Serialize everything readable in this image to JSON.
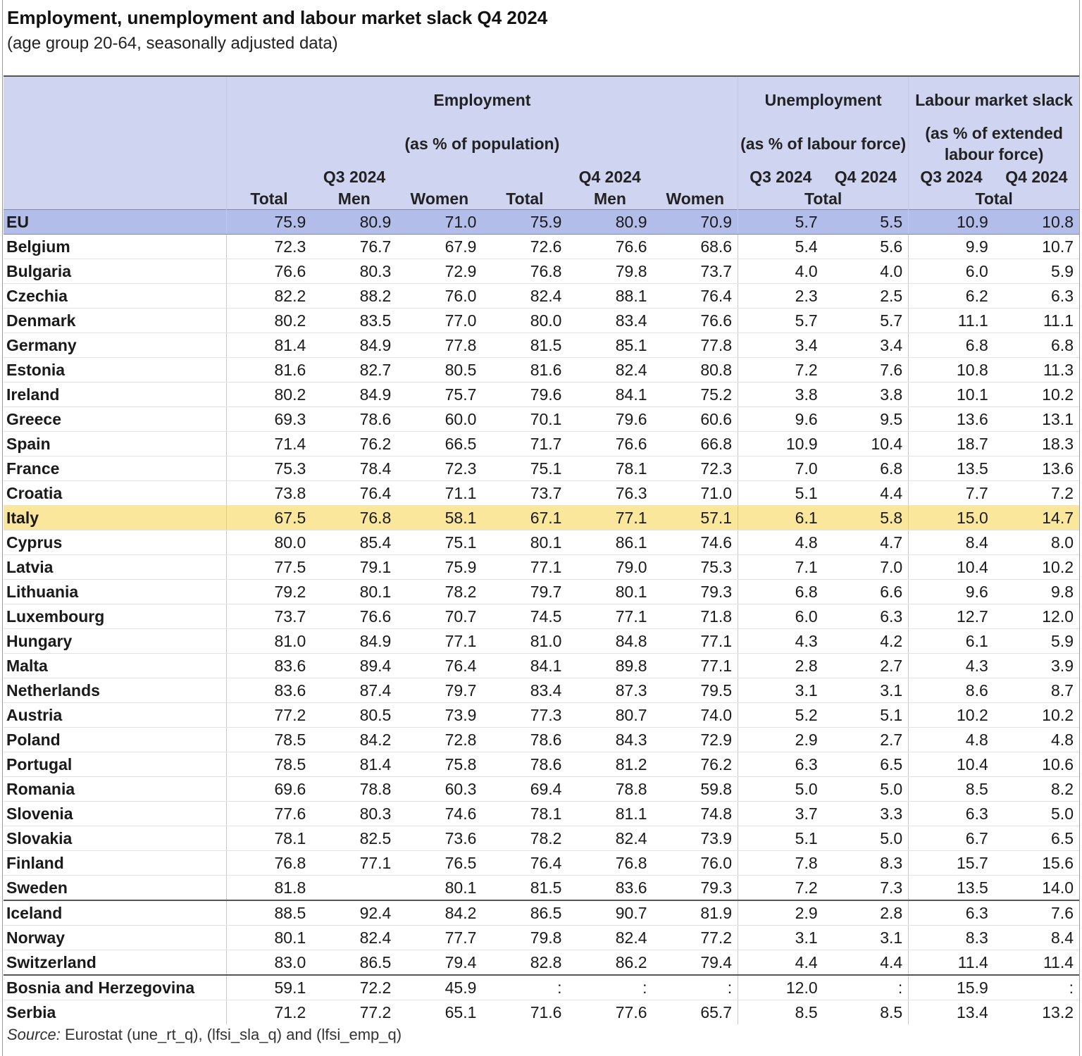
{
  "title": "Employment, unemployment and labour market slack Q4 2024",
  "subtitle": "(age group 20-64, seasonally adjusted data)",
  "header": {
    "employment": "Employment",
    "employment_sub": "(as % of population)",
    "unemployment": "Unemployment",
    "unemployment_sub": "(as % of labour force)",
    "slack": "Labour market slack",
    "slack_sub": "(as % of extended labour force)",
    "q3": "Q3 2024",
    "q4": "Q4 2024",
    "total": "Total",
    "men": "Men",
    "women": "Women"
  },
  "rows": [
    {
      "country": "EU",
      "values": [
        "75.9",
        "80.9",
        "71.0",
        "75.9",
        "80.9",
        "70.9",
        "5.7",
        "5.5",
        "10.9",
        "10.8"
      ]
    },
    {
      "country": "Belgium",
      "values": [
        "72.3",
        "76.7",
        "67.9",
        "72.6",
        "76.6",
        "68.6",
        "5.4",
        "5.6",
        "9.9",
        "10.7"
      ]
    },
    {
      "country": "Bulgaria",
      "values": [
        "76.6",
        "80.3",
        "72.9",
        "76.8",
        "79.8",
        "73.7",
        "4.0",
        "4.0",
        "6.0",
        "5.9"
      ]
    },
    {
      "country": "Czechia",
      "values": [
        "82.2",
        "88.2",
        "76.0",
        "82.4",
        "88.1",
        "76.4",
        "2.3",
        "2.5",
        "6.2",
        "6.3"
      ]
    },
    {
      "country": "Denmark",
      "values": [
        "80.2",
        "83.5",
        "77.0",
        "80.0",
        "83.4",
        "76.6",
        "5.7",
        "5.7",
        "11.1",
        "11.1"
      ]
    },
    {
      "country": "Germany",
      "values": [
        "81.4",
        "84.9",
        "77.8",
        "81.5",
        "85.1",
        "77.8",
        "3.4",
        "3.4",
        "6.8",
        "6.8"
      ]
    },
    {
      "country": "Estonia",
      "values": [
        "81.6",
        "82.7",
        "80.5",
        "81.6",
        "82.4",
        "80.8",
        "7.2",
        "7.6",
        "10.8",
        "11.3"
      ]
    },
    {
      "country": "Ireland",
      "values": [
        "80.2",
        "84.9",
        "75.7",
        "79.6",
        "84.1",
        "75.2",
        "3.8",
        "3.8",
        "10.1",
        "10.2"
      ]
    },
    {
      "country": "Greece",
      "values": [
        "69.3",
        "78.6",
        "60.0",
        "70.1",
        "79.6",
        "60.6",
        "9.6",
        "9.5",
        "13.6",
        "13.1"
      ]
    },
    {
      "country": "Spain",
      "values": [
        "71.4",
        "76.2",
        "66.5",
        "71.7",
        "76.6",
        "66.8",
        "10.9",
        "10.4",
        "18.7",
        "18.3"
      ]
    },
    {
      "country": "France",
      "values": [
        "75.3",
        "78.4",
        "72.3",
        "75.1",
        "78.1",
        "72.3",
        "7.0",
        "6.8",
        "13.5",
        "13.6"
      ]
    },
    {
      "country": "Croatia",
      "values": [
        "73.8",
        "76.4",
        "71.1",
        "73.7",
        "76.3",
        "71.0",
        "5.1",
        "4.4",
        "7.7",
        "7.2"
      ]
    },
    {
      "country": "Italy",
      "values": [
        "67.5",
        "76.8",
        "58.1",
        "67.1",
        "77.1",
        "57.1",
        "6.1",
        "5.8",
        "15.0",
        "14.7"
      ]
    },
    {
      "country": "Cyprus",
      "values": [
        "80.0",
        "85.4",
        "75.1",
        "80.1",
        "86.1",
        "74.6",
        "4.8",
        "4.7",
        "8.4",
        "8.0"
      ]
    },
    {
      "country": "Latvia",
      "values": [
        "77.5",
        "79.1",
        "75.9",
        "77.1",
        "79.0",
        "75.3",
        "7.1",
        "7.0",
        "10.4",
        "10.2"
      ]
    },
    {
      "country": "Lithuania",
      "values": [
        "79.2",
        "80.1",
        "78.2",
        "79.7",
        "80.1",
        "79.3",
        "6.8",
        "6.6",
        "9.6",
        "9.8"
      ]
    },
    {
      "country": "Luxembourg",
      "values": [
        "73.7",
        "76.6",
        "70.7",
        "74.5",
        "77.1",
        "71.8",
        "6.0",
        "6.3",
        "12.7",
        "12.0"
      ]
    },
    {
      "country": "Hungary",
      "values": [
        "81.0",
        "84.9",
        "77.1",
        "81.0",
        "84.8",
        "77.1",
        "4.3",
        "4.2",
        "6.1",
        "5.9"
      ]
    },
    {
      "country": "Malta",
      "values": [
        "83.6",
        "89.4",
        "76.4",
        "84.1",
        "89.8",
        "77.1",
        "2.8",
        "2.7",
        "4.3",
        "3.9"
      ]
    },
    {
      "country": "Netherlands",
      "values": [
        "83.6",
        "87.4",
        "79.7",
        "83.4",
        "87.3",
        "79.5",
        "3.1",
        "3.1",
        "8.6",
        "8.7"
      ]
    },
    {
      "country": "Austria",
      "values": [
        "77.2",
        "80.5",
        "73.9",
        "77.3",
        "80.7",
        "74.0",
        "5.2",
        "5.1",
        "10.2",
        "10.2"
      ]
    },
    {
      "country": "Poland",
      "values": [
        "78.5",
        "84.2",
        "72.8",
        "78.6",
        "84.3",
        "72.9",
        "2.9",
        "2.7",
        "4.8",
        "4.8"
      ]
    },
    {
      "country": "Portugal",
      "values": [
        "78.5",
        "81.4",
        "75.8",
        "78.6",
        "81.2",
        "76.2",
        "6.3",
        "6.5",
        "10.4",
        "10.6"
      ]
    },
    {
      "country": "Romania",
      "values": [
        "69.6",
        "78.8",
        "60.3",
        "69.4",
        "78.8",
        "59.8",
        "5.0",
        "5.0",
        "8.5",
        "8.2"
      ]
    },
    {
      "country": "Slovenia",
      "values": [
        "77.6",
        "80.3",
        "74.6",
        "78.1",
        "81.1",
        "74.8",
        "3.7",
        "3.3",
        "6.3",
        "5.0"
      ]
    },
    {
      "country": "Slovakia",
      "values": [
        "78.1",
        "82.5",
        "73.6",
        "78.2",
        "82.4",
        "73.9",
        "5.1",
        "5.0",
        "6.7",
        "6.5"
      ]
    },
    {
      "country": "Finland",
      "values": [
        "76.8",
        "77.1",
        "76.5",
        "76.4",
        "76.8",
        "76.0",
        "7.8",
        "8.3",
        "15.7",
        "15.6"
      ]
    },
    {
      "country": "Sweden",
      "values": [
        "81.8",
        "",
        "80.1",
        "81.5",
        "83.6",
        "79.3",
        "7.2",
        "7.3",
        "13.5",
        "14.0"
      ]
    },
    {
      "country": "Iceland",
      "values": [
        "88.5",
        "92.4",
        "84.2",
        "86.5",
        "90.7",
        "81.9",
        "2.9",
        "2.8",
        "6.3",
        "7.6"
      ]
    },
    {
      "country": "Norway",
      "values": [
        "80.1",
        "82.4",
        "77.7",
        "79.8",
        "82.4",
        "77.2",
        "3.1",
        "3.1",
        "8.3",
        "8.4"
      ]
    },
    {
      "country": "Switzerland",
      "values": [
        "83.0",
        "86.5",
        "79.4",
        "82.8",
        "86.2",
        "79.4",
        "4.4",
        "4.4",
        "11.4",
        "11.4"
      ]
    },
    {
      "country": "Bosnia and Herzegovina",
      "values": [
        "59.1",
        "72.2",
        "45.9",
        ":",
        ":",
        ":",
        "12.0",
        ":",
        "15.9",
        ":"
      ]
    },
    {
      "country": "Serbia",
      "values": [
        "71.2",
        "77.2",
        "65.1",
        "71.6",
        "77.6",
        "65.7",
        "8.5",
        "8.5",
        "13.4",
        "13.2"
      ]
    }
  ],
  "source_label": "Source:",
  "source_text": "Eurostat (une_rt_q), (lfsi_sla_q) and (lfsi_emp_q)",
  "colors": {
    "header_bg": "#cfd5f1",
    "eu_row_bg": "#b3bde9",
    "highlight_row_bg": "#fae79c"
  }
}
